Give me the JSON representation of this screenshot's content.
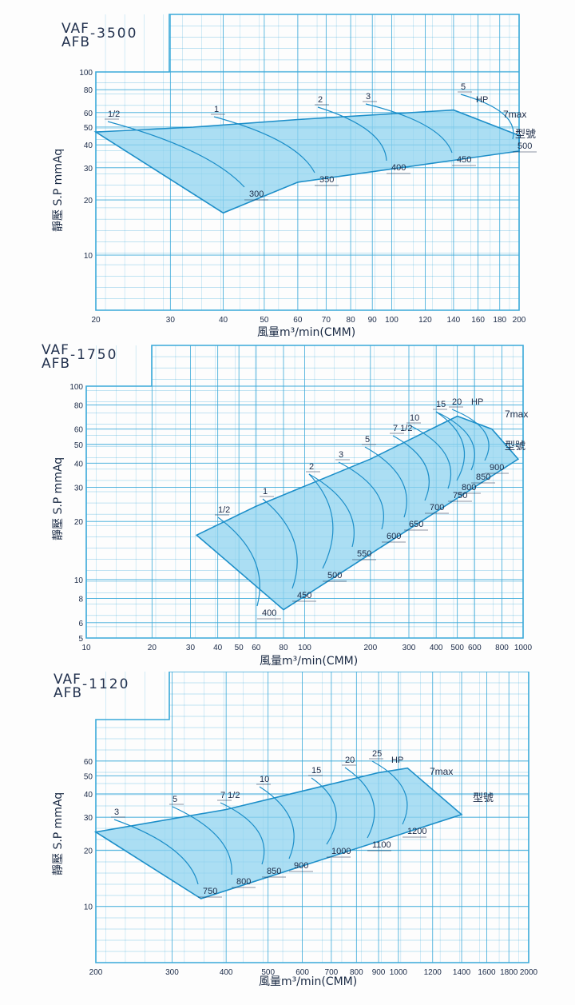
{
  "charts": [
    {
      "model_line1": "VAF",
      "model_line2": "AFB",
      "model_number": "-3500",
      "ylabel": "靜壓 S.P mmAq",
      "xlabel": "風量m³/min(CMM)",
      "hp_label": "HP",
      "max_label": "7max",
      "type_label": "型號",
      "chart_data": {
        "type": "area",
        "x_scale": "log",
        "y_scale": "log",
        "xlim": [
          20,
          200
        ],
        "ylim": [
          5,
          100
        ],
        "x_ticks": [
          20,
          30,
          40,
          50,
          60,
          70,
          80,
          90,
          100,
          120,
          140,
          160,
          180,
          200
        ],
        "y_ticks": [
          10,
          20,
          30,
          40,
          50,
          60,
          80,
          100
        ],
        "hp_labels": [
          "1/2",
          "1",
          "2",
          "3",
          "5"
        ],
        "type_labels": [
          "300",
          "350",
          "400",
          "450",
          "500"
        ],
        "operating_region": [
          [
            20,
            47
          ],
          [
            34,
            50
          ],
          [
            60,
            55
          ],
          [
            140,
            62
          ],
          [
            200,
            45
          ],
          [
            200,
            37
          ],
          [
            60,
            25
          ],
          [
            40,
            17
          ]
        ]
      }
    },
    {
      "model_line1": "VAF",
      "model_line2": "AFB",
      "model_number": "-1750",
      "ylabel": "靜壓 S.P mmAq",
      "xlabel": "風量m³/min(CMM)",
      "hp_label": "HP",
      "max_label": "7max",
      "type_label": "型號",
      "chart_data": {
        "type": "area",
        "x_scale": "log",
        "y_scale": "log",
        "xlim": [
          10,
          1000
        ],
        "ylim": [
          5,
          100
        ],
        "x_ticks": [
          10,
          20,
          30,
          40,
          50,
          60,
          80,
          100,
          200,
          300,
          400,
          500,
          600,
          800,
          1000
        ],
        "y_ticks": [
          5,
          6,
          8,
          10,
          20,
          30,
          40,
          50,
          60,
          80,
          100
        ],
        "hp_labels": [
          "1/2",
          "1",
          "2",
          "3",
          "5",
          "7 1/2",
          "10",
          "15",
          "20"
        ],
        "type_labels": [
          "400",
          "450",
          "500",
          "550",
          "600",
          "650",
          "700",
          "750",
          "800",
          "850",
          "900"
        ],
        "operating_region": [
          [
            32,
            17
          ],
          [
            60,
            24
          ],
          [
            200,
            42
          ],
          [
            500,
            70
          ],
          [
            720,
            60
          ],
          [
            950,
            42
          ],
          [
            80,
            7
          ]
        ]
      }
    },
    {
      "model_line1": "VAF",
      "model_line2": "AFB",
      "model_number": "-1120",
      "ylabel": "靜壓 S.P mmAq",
      "xlabel": "風量m³/min(CMM)",
      "hp_label": "HP",
      "max_label": "7max",
      "type_label": "型號",
      "chart_data": {
        "type": "area",
        "x_scale": "log",
        "y_scale": "log",
        "xlim": [
          200,
          2000
        ],
        "ylim": [
          5,
          100
        ],
        "x_ticks": [
          200,
          300,
          400,
          500,
          600,
          700,
          800,
          900,
          1000,
          1200,
          1400,
          1600,
          1800,
          2000
        ],
        "y_ticks": [
          10,
          20,
          30,
          40,
          50,
          60
        ],
        "hp_labels": [
          "3",
          "5",
          "7 1/2",
          "10",
          "15",
          "20",
          "25"
        ],
        "type_labels": [
          "750",
          "800",
          "850",
          "900",
          "1000",
          "1100",
          "1200"
        ],
        "operating_region": [
          [
            200,
            25
          ],
          [
            400,
            33
          ],
          [
            900,
            52
          ],
          [
            1050,
            55
          ],
          [
            1400,
            31
          ],
          [
            350,
            11
          ]
        ]
      }
    }
  ]
}
